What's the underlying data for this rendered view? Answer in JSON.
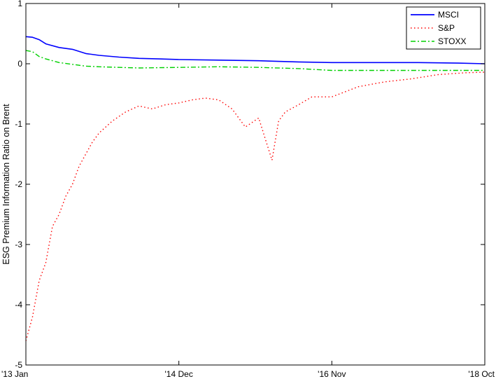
{
  "chart_data": {
    "type": "line",
    "title": "",
    "xlabel": "",
    "ylabel": "ESG Premium Information Ratio on Brent",
    "xlim": [
      "2013-01",
      "2018-10"
    ],
    "ylim": [
      -5,
      1
    ],
    "grid": false,
    "legend_position": "top-right",
    "x_ticks": [
      {
        "label": "'13 Jan",
        "value": "2013-01"
      },
      {
        "label": "'14 Dec",
        "value": "2014-12"
      },
      {
        "label": "'16 Nov",
        "value": "2016-11"
      },
      {
        "label": "'18 Oct",
        "value": "2018-10"
      }
    ],
    "y_ticks": [
      {
        "label": "1",
        "value": 1
      },
      {
        "label": "0",
        "value": 0
      },
      {
        "label": "-1",
        "value": -1
      },
      {
        "label": "-2",
        "value": -2
      },
      {
        "label": "-3",
        "value": -3
      },
      {
        "label": "-4",
        "value": -4
      },
      {
        "label": "-5",
        "value": -5
      }
    ],
    "series": [
      {
        "name": "MSCI",
        "color": "#0000ff",
        "style": "solid",
        "x": [
          "2013-01",
          "2013-02",
          "2013-03",
          "2013-04",
          "2013-06",
          "2013-08",
          "2013-10",
          "2013-12",
          "2014-03",
          "2014-06",
          "2014-09",
          "2014-12",
          "2015-06",
          "2015-12",
          "2016-06",
          "2016-11",
          "2017-06",
          "2017-12",
          "2018-06",
          "2018-10"
        ],
        "values": [
          0.45,
          0.44,
          0.4,
          0.33,
          0.27,
          0.24,
          0.17,
          0.14,
          0.11,
          0.09,
          0.08,
          0.07,
          0.06,
          0.05,
          0.03,
          0.02,
          0.02,
          0.02,
          0.01,
          0.0
        ]
      },
      {
        "name": "S&P",
        "color": "#ff0000",
        "style": "dotted",
        "x": [
          "2013-01",
          "2013-02",
          "2013-03",
          "2013-04",
          "2013-05",
          "2013-06",
          "2013-07",
          "2013-08",
          "2013-09",
          "2013-10",
          "2013-11",
          "2013-12",
          "2014-02",
          "2014-04",
          "2014-06",
          "2014-08",
          "2014-10",
          "2014-12",
          "2015-02",
          "2015-04",
          "2015-06",
          "2015-08",
          "2015-10",
          "2015-12",
          "2016-01",
          "2016-02",
          "2016-03",
          "2016-04",
          "2016-06",
          "2016-08",
          "2016-11",
          "2017-03",
          "2017-07",
          "2017-11",
          "2018-03",
          "2018-07",
          "2018-10"
        ],
        "values": [
          -4.6,
          -4.2,
          -3.6,
          -3.3,
          -2.7,
          -2.5,
          -2.2,
          -2.0,
          -1.7,
          -1.5,
          -1.3,
          -1.15,
          -0.95,
          -0.8,
          -0.7,
          -0.75,
          -0.68,
          -0.65,
          -0.6,
          -0.57,
          -0.6,
          -0.75,
          -1.05,
          -0.9,
          -1.25,
          -1.6,
          -0.95,
          -0.8,
          -0.68,
          -0.55,
          -0.55,
          -0.38,
          -0.3,
          -0.25,
          -0.18,
          -0.15,
          -0.14
        ]
      },
      {
        "name": "STOXX",
        "color": "#00d000",
        "style": "dashdot",
        "x": [
          "2013-01",
          "2013-02",
          "2013-03",
          "2013-04",
          "2013-06",
          "2013-08",
          "2013-10",
          "2013-12",
          "2014-03",
          "2014-06",
          "2014-12",
          "2015-06",
          "2015-12",
          "2016-06",
          "2016-11",
          "2017-06",
          "2017-12",
          "2018-06",
          "2018-10"
        ],
        "values": [
          0.22,
          0.2,
          0.12,
          0.08,
          0.02,
          -0.01,
          -0.04,
          -0.05,
          -0.06,
          -0.07,
          -0.06,
          -0.05,
          -0.06,
          -0.08,
          -0.11,
          -0.11,
          -0.11,
          -0.11,
          -0.11
        ]
      }
    ]
  }
}
